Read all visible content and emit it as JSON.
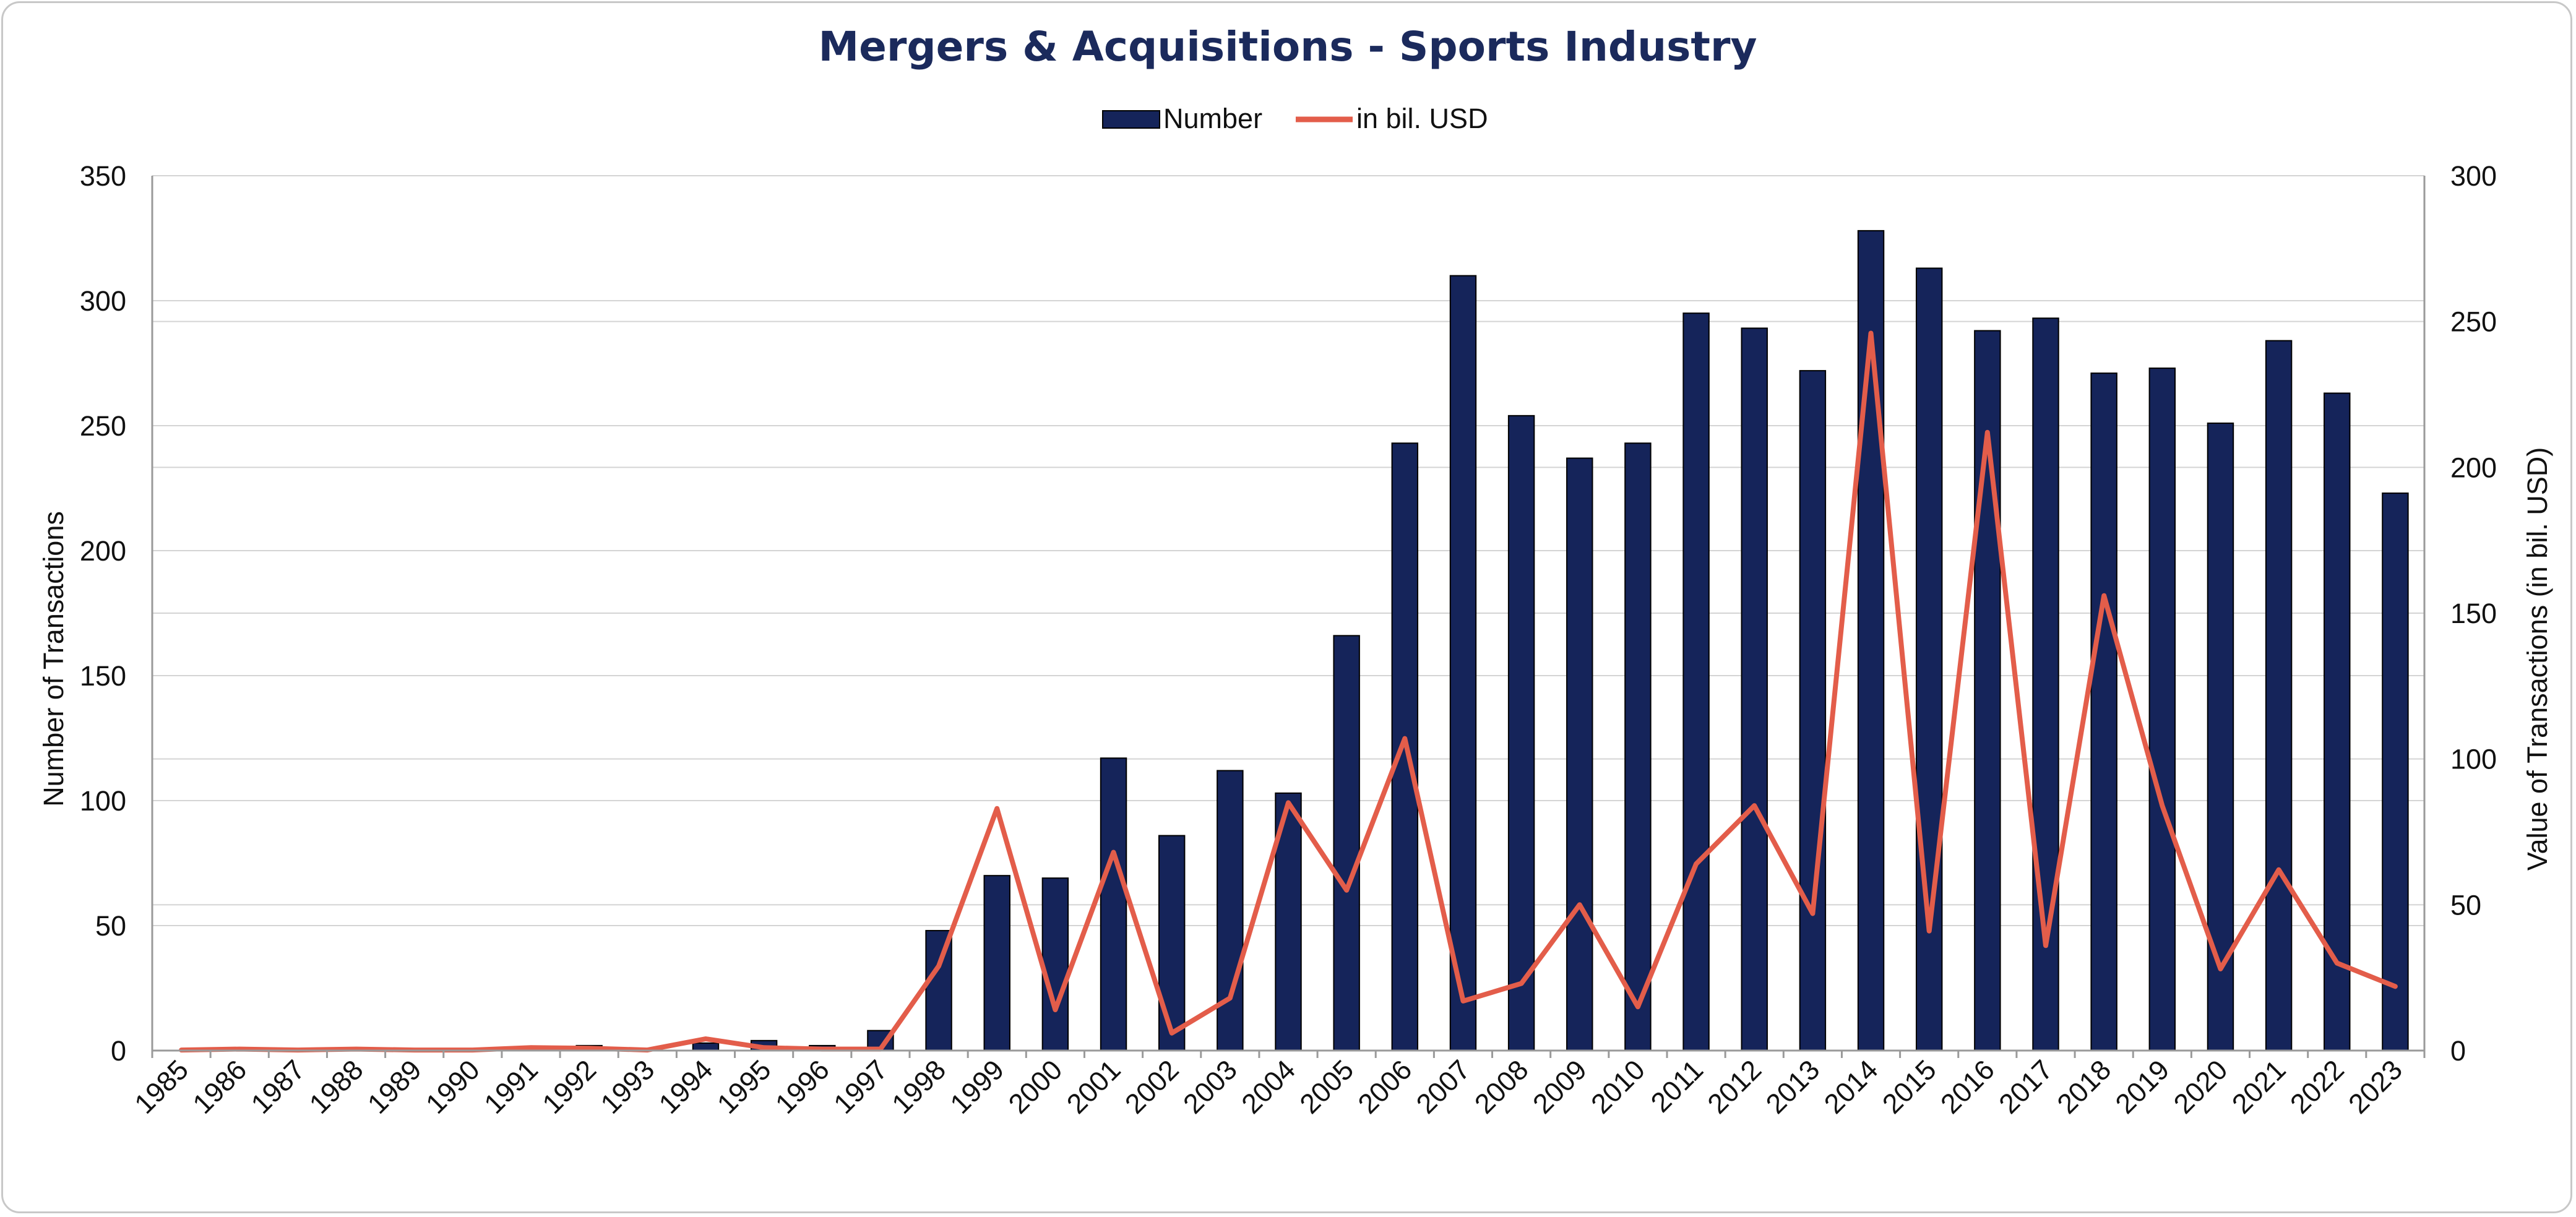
{
  "chart_data": {
    "type": "bar",
    "title": "Mergers & Acquisitions - Sports Industry",
    "ylabel": "Number of Transactions",
    "y2label": "Value of Transactions (in bil. USD)",
    "ylim": [
      0,
      350
    ],
    "y2lim": [
      0,
      300
    ],
    "yticks": [
      "0",
      "50",
      "100",
      "150",
      "200",
      "250",
      "300",
      "350"
    ],
    "y2ticks": [
      "0",
      "50",
      "100",
      "150",
      "200",
      "250",
      "300"
    ],
    "grid": true,
    "legend_position": "top-center",
    "categories": [
      "1985",
      "1986",
      "1987",
      "1988",
      "1989",
      "1990",
      "1991",
      "1992",
      "1993",
      "1994",
      "1995",
      "1996",
      "1997",
      "1998",
      "1999",
      "2000",
      "2001",
      "2002",
      "2003",
      "2004",
      "2005",
      "2006",
      "2007",
      "2008",
      "2009",
      "2010",
      "2011",
      "2012",
      "2013",
      "2014",
      "2015",
      "2016",
      "2017",
      "2018",
      "2019",
      "2020",
      "2021",
      "2022",
      "2023"
    ],
    "series": [
      {
        "name": "Number",
        "type": "bar",
        "axis": "left",
        "color": "#15245a",
        "values": [
          0,
          0,
          0,
          0,
          0,
          0,
          0,
          2,
          0,
          3,
          4,
          2,
          8,
          48,
          70,
          69,
          117,
          86,
          112,
          103,
          166,
          243,
          310,
          254,
          237,
          243,
          295,
          289,
          272,
          328,
          313,
          288,
          293,
          271,
          273,
          251,
          284,
          263,
          223
        ]
      },
      {
        "name": "in bil. USD",
        "type": "line",
        "axis": "right",
        "color": "#e35d4a",
        "values": [
          0.2,
          0.5,
          0.2,
          0.5,
          0.2,
          0.2,
          1,
          0.8,
          0.2,
          4,
          1,
          0.5,
          0.5,
          29,
          83,
          14,
          68,
          6,
          18,
          85,
          55,
          107,
          17,
          23,
          50,
          15,
          64,
          84,
          47,
          246,
          41,
          212,
          36,
          156,
          84,
          28,
          62,
          30,
          22
        ]
      }
    ]
  }
}
